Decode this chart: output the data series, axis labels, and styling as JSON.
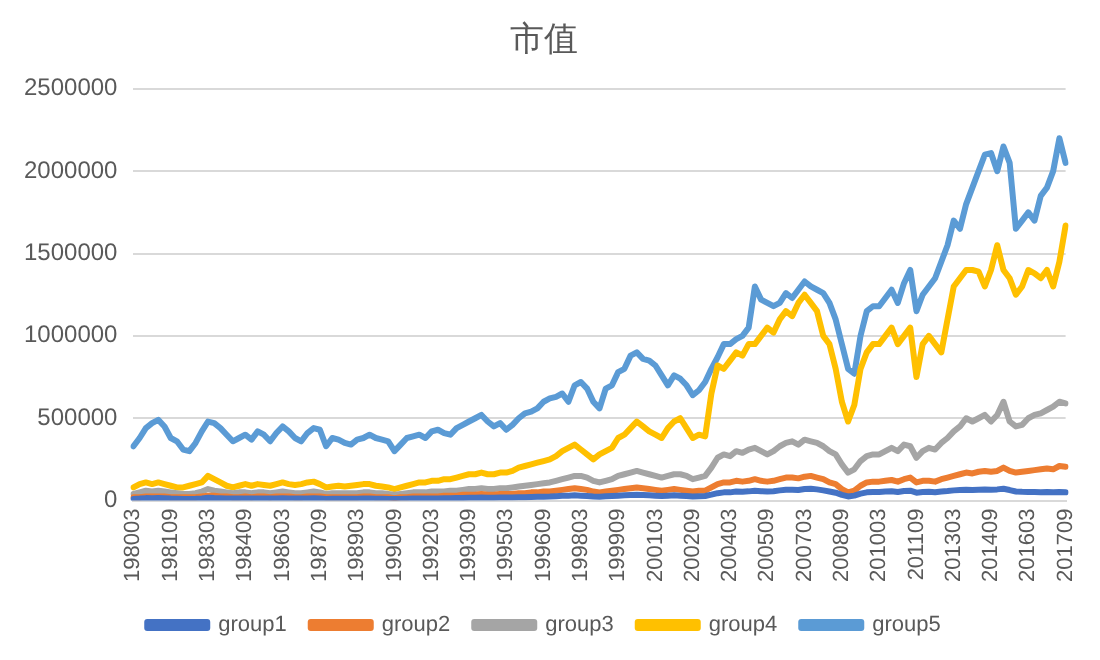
{
  "chart_data": {
    "type": "line",
    "title": "市值",
    "categories": [
      "198003",
      null,
      null,
      null,
      null,
      null,
      "198109",
      null,
      null,
      null,
      null,
      null,
      "198303",
      null,
      null,
      null,
      null,
      null,
      "198409",
      null,
      null,
      null,
      null,
      null,
      "198603",
      null,
      null,
      null,
      null,
      null,
      "198709",
      null,
      null,
      null,
      null,
      null,
      "198903",
      null,
      null,
      null,
      null,
      null,
      "199009",
      null,
      null,
      null,
      null,
      null,
      "199203",
      null,
      null,
      null,
      null,
      null,
      "199309",
      null,
      null,
      null,
      null,
      null,
      "199503",
      null,
      null,
      null,
      null,
      null,
      "199609",
      null,
      null,
      null,
      null,
      null,
      "199803",
      null,
      null,
      null,
      null,
      null,
      "199909",
      null,
      null,
      null,
      null,
      null,
      "200103",
      null,
      null,
      null,
      null,
      null,
      "200209",
      null,
      null,
      null,
      null,
      null,
      "200403",
      null,
      null,
      null,
      null,
      null,
      "200509",
      null,
      null,
      null,
      null,
      null,
      "200703",
      null,
      null,
      null,
      null,
      null,
      "200809",
      null,
      null,
      null,
      null,
      null,
      "201003",
      null,
      null,
      null,
      null,
      null,
      "201109",
      null,
      null,
      null,
      null,
      null,
      "201303",
      null,
      null,
      null,
      null,
      null,
      "201409",
      null,
      null,
      null,
      null,
      null,
      "201603",
      null,
      null,
      null,
      null,
      null,
      "201709"
    ],
    "series": [
      {
        "name": "group1",
        "color": "#4472c4",
        "values": [
          10000,
          12000,
          15000,
          14000,
          15000,
          14000,
          12000,
          11000,
          10000,
          10000,
          11000,
          13000,
          17000,
          15000,
          14000,
          13000,
          12000,
          12000,
          13000,
          12000,
          13000,
          13000,
          12000,
          13000,
          14000,
          13000,
          12000,
          12000,
          13000,
          14000,
          13000,
          10000,
          11000,
          11000,
          11000,
          11000,
          11000,
          12000,
          12000,
          11000,
          11000,
          10000,
          9000,
          10000,
          11000,
          12000,
          12000,
          12000,
          13000,
          13000,
          14000,
          14000,
          15000,
          16000,
          17000,
          17000,
          18000,
          17000,
          17000,
          18000,
          18000,
          19000,
          20000,
          21000,
          22000,
          23000,
          24000,
          25000,
          27000,
          29000,
          30000,
          32000,
          30000,
          28000,
          25000,
          24000,
          26000,
          28000,
          30000,
          32000,
          34000,
          36000,
          34000,
          32000,
          30000,
          28000,
          30000,
          32000,
          30000,
          28000,
          25000,
          27000,
          28000,
          36000,
          45000,
          50000,
          50000,
          55000,
          53000,
          56000,
          60000,
          57000,
          55000,
          57000,
          62000,
          66000,
          66000,
          64000,
          70000,
          72000,
          68000,
          62000,
          55000,
          48000,
          35000,
          25000,
          30000,
          42000,
          50000,
          52000,
          52000,
          55000,
          57000,
          52000,
          58000,
          60000,
          48000,
          52000,
          53000,
          51000,
          55000,
          58000,
          62000,
          64000,
          66000,
          64000,
          66000,
          68000,
          66000,
          68000,
          72000,
          64000,
          55000,
          53000,
          52000,
          52000,
          51000,
          52000,
          50000,
          52000,
          50000
        ]
      },
      {
        "name": "group2",
        "color": "#ed7d31",
        "values": [
          20000,
          20000,
          25000,
          25000,
          25000,
          25000,
          20000,
          20000,
          20000,
          20000,
          20000,
          25000,
          30000,
          30000,
          25000,
          25000,
          20000,
          20000,
          25000,
          20000,
          25000,
          25000,
          20000,
          25000,
          25000,
          25000,
          20000,
          20000,
          25000,
          25000,
          25000,
          20000,
          20000,
          20000,
          20000,
          20000,
          20000,
          25000,
          25000,
          20000,
          20000,
          20000,
          15000,
          20000,
          20000,
          25000,
          25000,
          25000,
          25000,
          25000,
          30000,
          30000,
          30000,
          35000,
          35000,
          35000,
          40000,
          35000,
          35000,
          40000,
          40000,
          40000,
          45000,
          45000,
          50000,
          50000,
          55000,
          55000,
          60000,
          65000,
          70000,
          75000,
          70000,
          65000,
          55000,
          50000,
          55000,
          60000,
          65000,
          70000,
          75000,
          80000,
          75000,
          70000,
          65000,
          60000,
          65000,
          70000,
          65000,
          60000,
          55000,
          60000,
          60000,
          80000,
          100000,
          110000,
          110000,
          120000,
          115000,
          120000,
          130000,
          120000,
          115000,
          120000,
          130000,
          140000,
          140000,
          135000,
          145000,
          150000,
          140000,
          130000,
          110000,
          100000,
          70000,
          50000,
          60000,
          90000,
          110000,
          115000,
          115000,
          120000,
          125000,
          115000,
          130000,
          140000,
          110000,
          120000,
          120000,
          115000,
          130000,
          140000,
          150000,
          160000,
          170000,
          165000,
          175000,
          180000,
          175000,
          180000,
          200000,
          180000,
          170000,
          175000,
          180000,
          185000,
          190000,
          195000,
          190000,
          210000,
          205000
        ]
      },
      {
        "name": "group3",
        "color": "#a5a5a5",
        "values": [
          40000,
          50000,
          60000,
          55000,
          60000,
          55000,
          50000,
          45000,
          40000,
          40000,
          45000,
          55000,
          70000,
          60000,
          55000,
          50000,
          45000,
          50000,
          50000,
          45000,
          50000,
          50000,
          45000,
          50000,
          55000,
          50000,
          45000,
          45000,
          50000,
          55000,
          50000,
          40000,
          45000,
          45000,
          45000,
          45000,
          45000,
          50000,
          50000,
          45000,
          45000,
          40000,
          35000,
          40000,
          45000,
          50000,
          50000,
          50000,
          55000,
          55000,
          55000,
          60000,
          60000,
          65000,
          70000,
          70000,
          75000,
          70000,
          70000,
          75000,
          75000,
          80000,
          85000,
          90000,
          95000,
          100000,
          105000,
          110000,
          120000,
          130000,
          140000,
          150000,
          150000,
          140000,
          120000,
          110000,
          120000,
          130000,
          150000,
          160000,
          170000,
          180000,
          170000,
          160000,
          150000,
          140000,
          150000,
          160000,
          160000,
          150000,
          130000,
          140000,
          150000,
          200000,
          260000,
          280000,
          270000,
          300000,
          290000,
          310000,
          320000,
          300000,
          280000,
          300000,
          330000,
          350000,
          360000,
          340000,
          370000,
          360000,
          350000,
          330000,
          300000,
          280000,
          220000,
          170000,
          190000,
          240000,
          270000,
          280000,
          280000,
          300000,
          320000,
          300000,
          340000,
          330000,
          260000,
          300000,
          320000,
          310000,
          350000,
          380000,
          420000,
          450000,
          500000,
          480000,
          500000,
          520000,
          480000,
          520000,
          600000,
          480000,
          450000,
          460000,
          500000,
          520000,
          530000,
          550000,
          570000,
          600000,
          590000
        ]
      },
      {
        "name": "group4",
        "color": "#ffc000",
        "values": [
          80000,
          100000,
          110000,
          100000,
          110000,
          100000,
          90000,
          80000,
          80000,
          90000,
          100000,
          110000,
          150000,
          130000,
          110000,
          90000,
          80000,
          90000,
          100000,
          90000,
          100000,
          95000,
          90000,
          100000,
          110000,
          100000,
          95000,
          100000,
          110000,
          115000,
          100000,
          80000,
          85000,
          90000,
          85000,
          90000,
          95000,
          100000,
          100000,
          90000,
          85000,
          80000,
          70000,
          80000,
          90000,
          100000,
          110000,
          110000,
          120000,
          120000,
          130000,
          130000,
          140000,
          150000,
          160000,
          160000,
          170000,
          160000,
          160000,
          170000,
          170000,
          180000,
          200000,
          210000,
          220000,
          230000,
          240000,
          250000,
          270000,
          300000,
          320000,
          340000,
          310000,
          280000,
          250000,
          280000,
          300000,
          320000,
          380000,
          400000,
          440000,
          480000,
          450000,
          420000,
          400000,
          380000,
          440000,
          480000,
          500000,
          440000,
          380000,
          400000,
          390000,
          650000,
          820000,
          800000,
          850000,
          900000,
          880000,
          950000,
          950000,
          1000000,
          1050000,
          1020000,
          1100000,
          1150000,
          1120000,
          1200000,
          1250000,
          1200000,
          1150000,
          1000000,
          950000,
          800000,
          600000,
          480000,
          580000,
          800000,
          900000,
          950000,
          950000,
          1000000,
          1050000,
          950000,
          1000000,
          1050000,
          750000,
          950000,
          1000000,
          950000,
          900000,
          1100000,
          1300000,
          1350000,
          1400000,
          1400000,
          1390000,
          1300000,
          1400000,
          1550000,
          1400000,
          1350000,
          1250000,
          1300000,
          1400000,
          1380000,
          1350000,
          1400000,
          1300000,
          1450000,
          1670000
        ]
      },
      {
        "name": "group5",
        "color": "#5b9bd5",
        "values": [
          330000,
          380000,
          440000,
          470000,
          490000,
          450000,
          380000,
          360000,
          310000,
          300000,
          350000,
          420000,
          480000,
          470000,
          440000,
          400000,
          360000,
          380000,
          400000,
          370000,
          420000,
          400000,
          360000,
          410000,
          450000,
          420000,
          380000,
          360000,
          410000,
          440000,
          430000,
          330000,
          380000,
          370000,
          350000,
          340000,
          370000,
          380000,
          400000,
          380000,
          370000,
          360000,
          300000,
          340000,
          380000,
          390000,
          400000,
          380000,
          420000,
          430000,
          410000,
          400000,
          440000,
          460000,
          480000,
          500000,
          520000,
          480000,
          450000,
          470000,
          430000,
          460000,
          500000,
          530000,
          540000,
          560000,
          600000,
          620000,
          630000,
          650000,
          600000,
          700000,
          720000,
          680000,
          600000,
          560000,
          680000,
          700000,
          780000,
          800000,
          880000,
          900000,
          860000,
          850000,
          820000,
          760000,
          700000,
          760000,
          740000,
          700000,
          640000,
          670000,
          720000,
          800000,
          870000,
          950000,
          950000,
          980000,
          1000000,
          1050000,
          1300000,
          1220000,
          1200000,
          1180000,
          1200000,
          1260000,
          1230000,
          1280000,
          1330000,
          1300000,
          1280000,
          1260000,
          1200000,
          1100000,
          950000,
          800000,
          770000,
          1000000,
          1150000,
          1180000,
          1180000,
          1230000,
          1280000,
          1200000,
          1320000,
          1400000,
          1150000,
          1250000,
          1300000,
          1350000,
          1450000,
          1550000,
          1700000,
          1650000,
          1800000,
          1900000,
          2000000,
          2100000,
          2110000,
          2000000,
          2150000,
          2050000,
          1650000,
          1700000,
          1750000,
          1700000,
          1850000,
          1900000,
          2000000,
          2200000,
          2050000
        ]
      }
    ],
    "ylim": [
      0,
      2500000
    ],
    "yticks": [
      0,
      500000,
      1000000,
      1500000,
      2000000,
      2500000
    ],
    "grid": "y",
    "legend": "bottom",
    "marker": "none",
    "line_style": "solid"
  }
}
